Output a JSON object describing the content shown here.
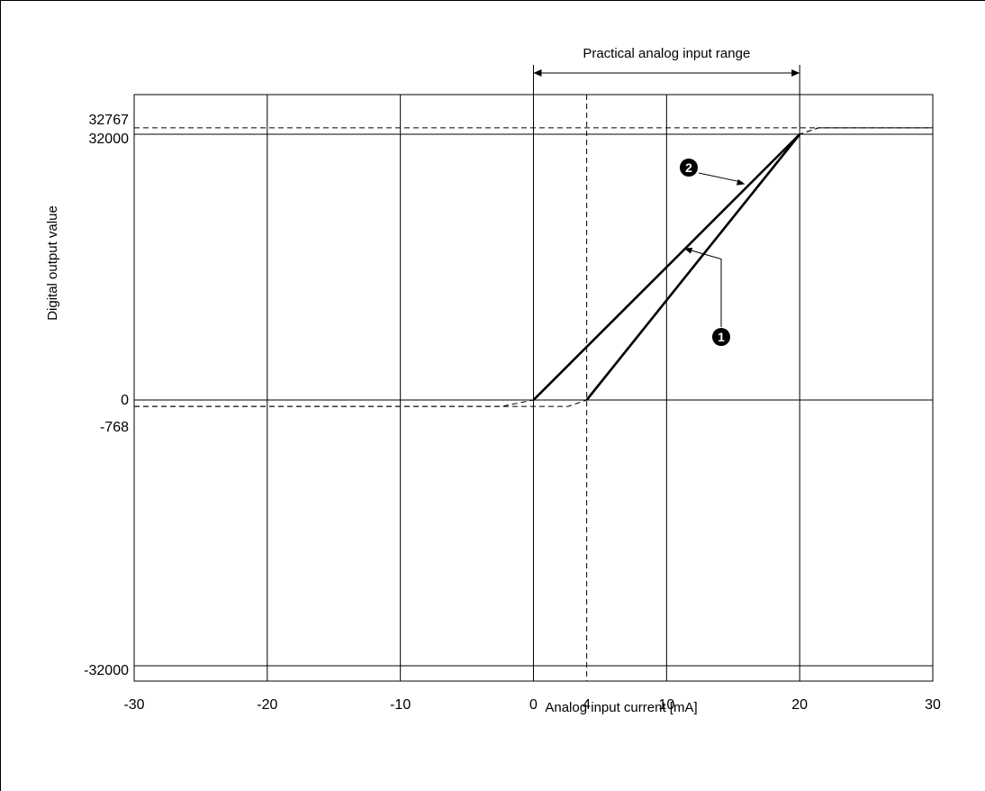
{
  "chart_data": {
    "type": "line",
    "title": "",
    "xlabel": "Analog input current [mA]",
    "ylabel": "Digital output value",
    "xlim": [
      -30,
      30
    ],
    "ylim": [
      -32000,
      32767
    ],
    "x_ticks": [
      -30,
      -20,
      -10,
      0,
      4,
      10,
      20,
      30
    ],
    "y_ticks": [
      32767,
      32000,
      0,
      -768,
      -32000
    ],
    "grid": true,
    "range_annotation": {
      "label": "Practical analog input range",
      "from": 0,
      "to": 20
    },
    "reference_lines": [
      {
        "axis": "x",
        "value": 4,
        "style": "dashed"
      },
      {
        "axis": "y",
        "value": 32767,
        "style": "dashed"
      }
    ],
    "series": [
      {
        "marker": "1",
        "solid": [
          [
            4,
            0
          ],
          [
            20,
            32000
          ]
        ],
        "dashed": [
          [
            -30,
            -768
          ],
          [
            2.6,
            -768
          ],
          [
            4,
            0
          ],
          [
            20,
            32000
          ],
          [
            21.4,
            32767
          ],
          [
            30,
            32767
          ]
        ]
      },
      {
        "marker": "2",
        "solid": [
          [
            0,
            0
          ],
          [
            20,
            32000
          ]
        ],
        "dashed": [
          [
            -30,
            -768
          ],
          [
            -2.4,
            -768
          ],
          [
            0,
            0
          ],
          [
            20,
            32000
          ],
          [
            21.4,
            32767
          ],
          [
            30,
            32767
          ]
        ]
      }
    ],
    "callouts": [
      {
        "marker": "1",
        "points_to": [
          11.3,
          18280
        ]
      },
      {
        "marker": "2",
        "points_to": [
          15.9,
          26000
        ]
      }
    ]
  }
}
